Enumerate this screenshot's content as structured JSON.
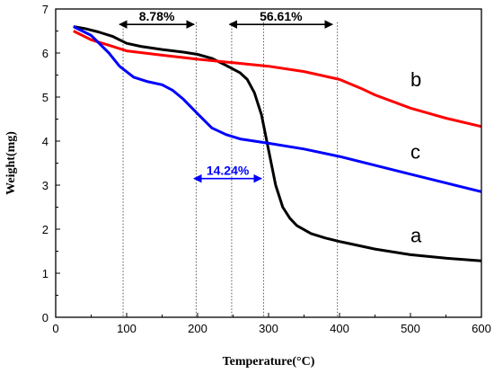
{
  "chart_data": {
    "type": "line",
    "xlabel": "Temperature(°C)",
    "ylabel": "Weight(mg)",
    "xlim": [
      0,
      600
    ],
    "ylim": [
      0,
      7
    ],
    "xticks": [
      "0",
      "100",
      "200",
      "300",
      "400",
      "500",
      "600"
    ],
    "yticks": [
      "0",
      "1",
      "2",
      "3",
      "4",
      "5",
      "6",
      "7"
    ],
    "grid": false,
    "legend": "none",
    "series": [
      {
        "name": "a",
        "color": "#000000",
        "points": [
          [
            25,
            6.6
          ],
          [
            40,
            6.56
          ],
          [
            60,
            6.48
          ],
          [
            80,
            6.38
          ],
          [
            100,
            6.22
          ],
          [
            120,
            6.15
          ],
          [
            150,
            6.08
          ],
          [
            180,
            6.02
          ],
          [
            200,
            5.97
          ],
          [
            220,
            5.88
          ],
          [
            240,
            5.72
          ],
          [
            260,
            5.55
          ],
          [
            270,
            5.4
          ],
          [
            280,
            5.1
          ],
          [
            290,
            4.6
          ],
          [
            300,
            3.8
          ],
          [
            310,
            3.0
          ],
          [
            320,
            2.5
          ],
          [
            330,
            2.25
          ],
          [
            340,
            2.08
          ],
          [
            360,
            1.9
          ],
          [
            380,
            1.8
          ],
          [
            400,
            1.72
          ],
          [
            450,
            1.55
          ],
          [
            500,
            1.42
          ],
          [
            550,
            1.34
          ],
          [
            600,
            1.28
          ]
        ]
      },
      {
        "name": "b",
        "color": "#ff0000",
        "points": [
          [
            25,
            6.5
          ],
          [
            50,
            6.3
          ],
          [
            80,
            6.15
          ],
          [
            100,
            6.05
          ],
          [
            150,
            5.95
          ],
          [
            200,
            5.86
          ],
          [
            250,
            5.78
          ],
          [
            300,
            5.7
          ],
          [
            350,
            5.58
          ],
          [
            400,
            5.4
          ],
          [
            430,
            5.2
          ],
          [
            450,
            5.05
          ],
          [
            500,
            4.75
          ],
          [
            550,
            4.52
          ],
          [
            600,
            4.33
          ]
        ]
      },
      {
        "name": "c",
        "color": "#0000ff",
        "points": [
          [
            25,
            6.6
          ],
          [
            50,
            6.4
          ],
          [
            75,
            6.0
          ],
          [
            90,
            5.7
          ],
          [
            110,
            5.45
          ],
          [
            130,
            5.35
          ],
          [
            150,
            5.28
          ],
          [
            165,
            5.15
          ],
          [
            180,
            4.95
          ],
          [
            200,
            4.62
          ],
          [
            220,
            4.3
          ],
          [
            240,
            4.15
          ],
          [
            260,
            4.05
          ],
          [
            300,
            3.95
          ],
          [
            350,
            3.82
          ],
          [
            400,
            3.65
          ],
          [
            450,
            3.45
          ],
          [
            500,
            3.25
          ],
          [
            550,
            3.05
          ],
          [
            600,
            2.85
          ]
        ]
      }
    ],
    "annotations": [
      {
        "text": "8.78%",
        "x1": 90,
        "x2": 195,
        "y": 6.65,
        "color": "#000000"
      },
      {
        "text": "56.61%",
        "x1": 245,
        "x2": 390,
        "y": 6.65,
        "color": "#000000"
      },
      {
        "text": "14.24%",
        "x1": 195,
        "x2": 290,
        "y": 3.15,
        "color": "#0000ff"
      }
    ],
    "reference_lines": [
      95,
      198,
      248,
      293,
      397
    ],
    "curve_labels": [
      {
        "text": "b",
        "x": 500,
        "y": 5.25
      },
      {
        "text": "c",
        "x": 500,
        "y": 3.6
      },
      {
        "text": "a",
        "x": 500,
        "y": 1.7
      }
    ]
  }
}
